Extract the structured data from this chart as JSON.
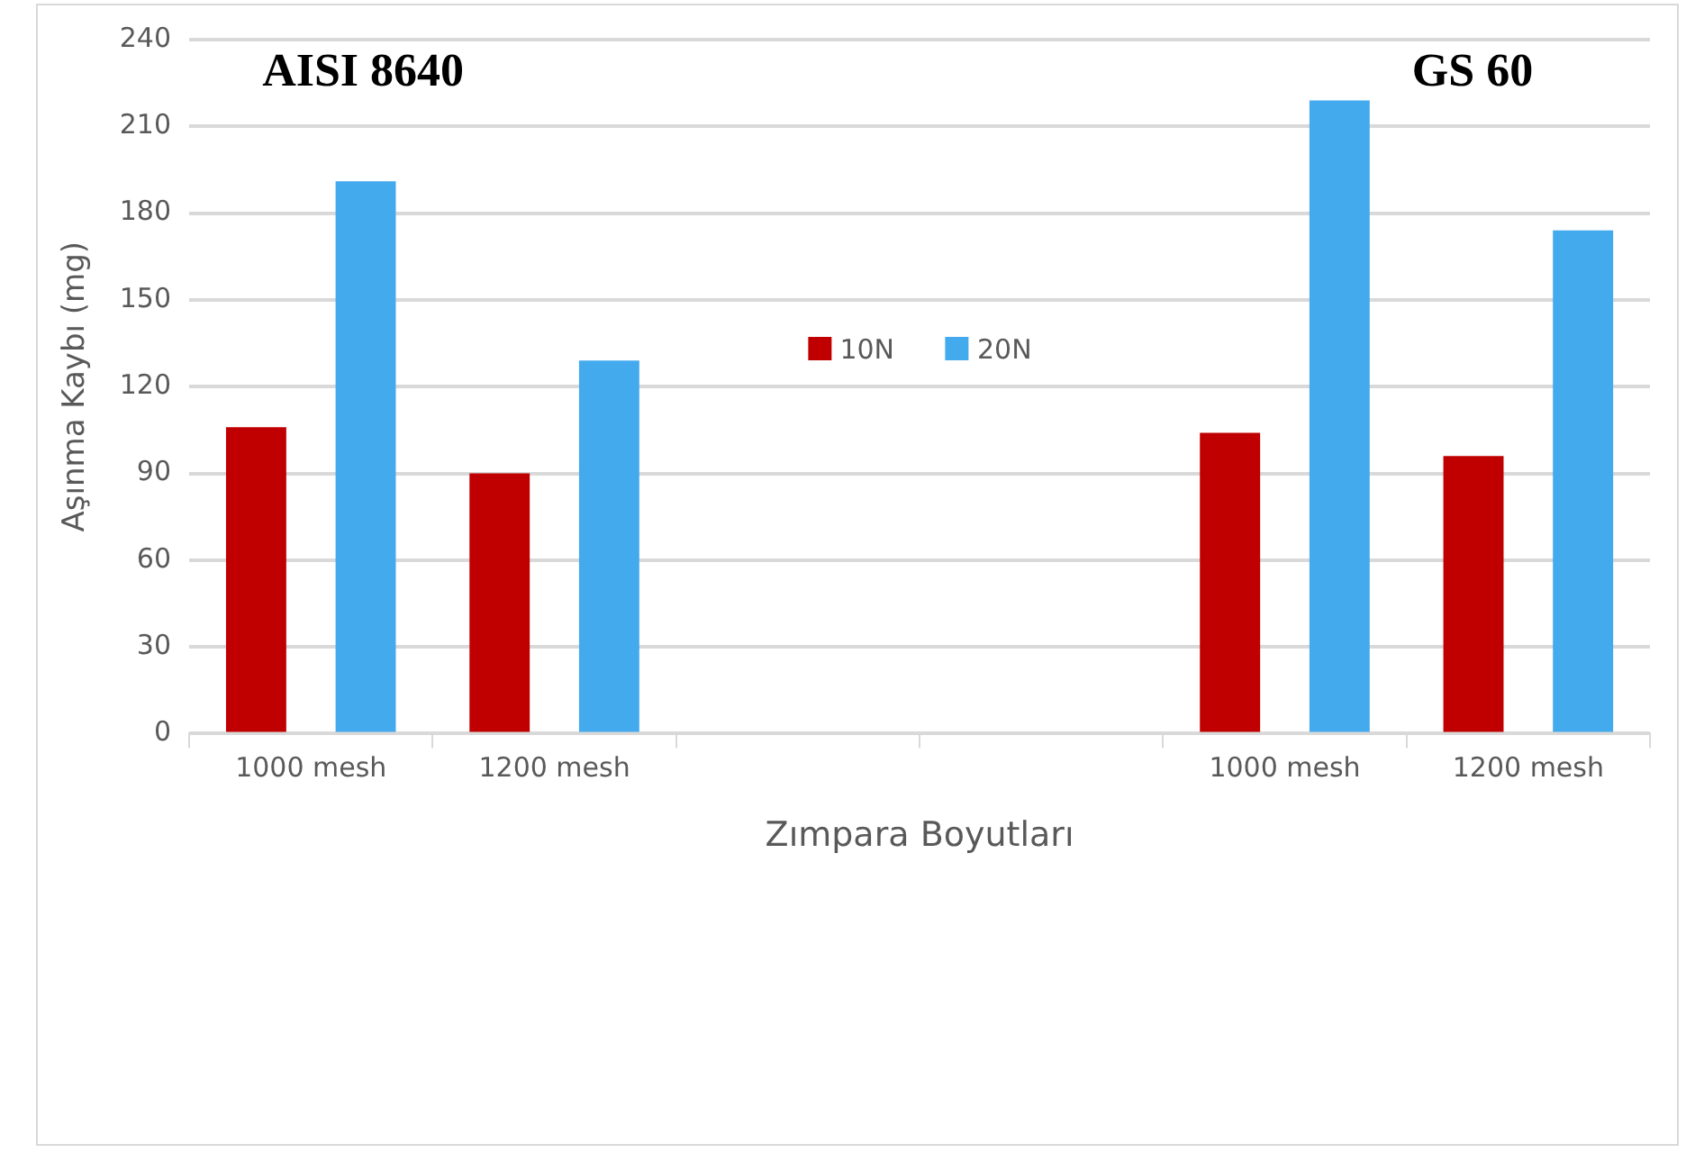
{
  "chart_data": {
    "type": "bar",
    "categories": [
      "1000 mesh",
      "1200 mesh",
      null,
      null,
      "1000 mesh",
      "1200 mesh"
    ],
    "series": [
      {
        "name": "10N",
        "color": "#c00000",
        "values": [
          106,
          90,
          null,
          null,
          104,
          96
        ]
      },
      {
        "name": "20N",
        "color": "#44aaee",
        "values": [
          191,
          129,
          null,
          null,
          219,
          174
        ]
      }
    ],
    "xlabel": "Zımpara Boyutları",
    "ylabel": "Aşınma Kaybı (mg)",
    "annotations": [
      "AISI 8640",
      "GS 60"
    ],
    "ylim": [
      0,
      240
    ],
    "yticks": [
      0,
      30,
      60,
      90,
      120,
      150,
      180,
      210,
      240
    ],
    "grid": "y",
    "legend": "center"
  }
}
